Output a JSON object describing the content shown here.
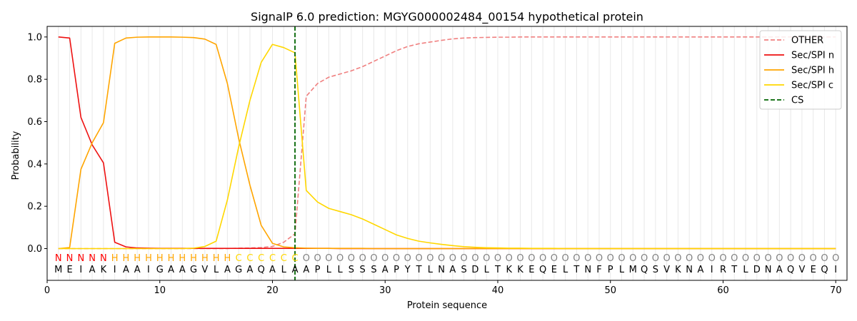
{
  "chart_data": {
    "type": "line",
    "title": "SignalP 6.0 prediction: MGYG000002484_00154 hypothetical protein",
    "xlabel": "Protein sequence",
    "ylabel": "Probability",
    "xlim": [
      0,
      71
    ],
    "ylim": [
      -0.15,
      1.05
    ],
    "xticks": [
      0,
      10,
      20,
      30,
      40,
      50,
      60,
      70
    ],
    "yticks": [
      0.0,
      0.2,
      0.4,
      0.6,
      0.8,
      1.0
    ],
    "ytick_labels": [
      "0.0",
      "0.2",
      "0.4",
      "0.6",
      "0.8",
      "1.0"
    ],
    "grid": "vertical lines at each residue",
    "legend_position": "top-right",
    "sequence": [
      "M",
      "E",
      "I",
      "A",
      "K",
      "I",
      "A",
      "A",
      "I",
      "G",
      "A",
      "A",
      "G",
      "V",
      "L",
      "A",
      "G",
      "A",
      "Q",
      "A",
      "L",
      "A",
      "A",
      "P",
      "L",
      "L",
      "S",
      "S",
      "S",
      "A",
      "P",
      "Y",
      "T",
      "L",
      "N",
      "A",
      "S",
      "D",
      "L",
      "T",
      "K",
      "K",
      "E",
      "Q",
      "E",
      "L",
      "T",
      "N",
      "F",
      "P",
      "L",
      "M",
      "Q",
      "S",
      "V",
      "K",
      "N",
      "A",
      "I",
      "R",
      "T",
      "L",
      "D",
      "N",
      "A",
      "Q",
      "V",
      "E",
      "Q",
      "I"
    ],
    "labels": [
      "N",
      "N",
      "N",
      "N",
      "N",
      "H",
      "H",
      "H",
      "H",
      "H",
      "H",
      "H",
      "H",
      "H",
      "H",
      "H",
      "C",
      "C",
      "C",
      "C",
      "C",
      "C",
      "O",
      "O",
      "O",
      "O",
      "O",
      "O",
      "O",
      "O",
      "O",
      "O",
      "O",
      "O",
      "O",
      "O",
      "O",
      "O",
      "O",
      "O",
      "O",
      "O",
      "O",
      "O",
      "O",
      "O",
      "O",
      "O",
      "O",
      "O",
      "O",
      "O",
      "O",
      "O",
      "O",
      "O",
      "O",
      "O",
      "O",
      "O",
      "O",
      "O",
      "O",
      "O",
      "O",
      "O",
      "O",
      "O",
      "O",
      "O"
    ],
    "label_colors": {
      "N": "#ff0000",
      "H": "#ffa500",
      "C": "#ffd700",
      "O": "#808080"
    },
    "cleavage_site": 22,
    "series": [
      {
        "name": "OTHER",
        "color": "#f08080",
        "dash": "dashed",
        "values": [
          0,
          0,
          0,
          0,
          0,
          0,
          0,
          0,
          0,
          0,
          0,
          0,
          0,
          0,
          0,
          0,
          0.002,
          0.003,
          0.005,
          0.01,
          0.03,
          0.07,
          0.72,
          0.78,
          0.81,
          0.825,
          0.84,
          0.86,
          0.885,
          0.91,
          0.935,
          0.955,
          0.968,
          0.976,
          0.984,
          0.991,
          0.995,
          0.997,
          0.998,
          0.999,
          0.999,
          1,
          1,
          1,
          1,
          1,
          1,
          1,
          1,
          1,
          1,
          1,
          1,
          1,
          1,
          1,
          1,
          1,
          1,
          1,
          1,
          1,
          1,
          1,
          1,
          1,
          1,
          1,
          1,
          1
        ]
      },
      {
        "name": "Sec/SPI n",
        "color": "#ee1111",
        "dash": "solid",
        "values": [
          1.0,
          0.995,
          0.62,
          0.49,
          0.405,
          0.03,
          0.008,
          0.003,
          0.002,
          0.001,
          0.001,
          0.001,
          0.001,
          0.001,
          0.001,
          0.001,
          0.001,
          0.001,
          0.001,
          0.001,
          0.001,
          0.001,
          0.001,
          0.001,
          0.001,
          0,
          0,
          0,
          0,
          0,
          0,
          0,
          0,
          0,
          0,
          0,
          0,
          0,
          0,
          0,
          0,
          0,
          0,
          0,
          0,
          0,
          0,
          0,
          0,
          0,
          0,
          0,
          0,
          0,
          0,
          0,
          0,
          0,
          0,
          0,
          0,
          0,
          0,
          0,
          0,
          0,
          0,
          0,
          0,
          0
        ]
      },
      {
        "name": "Sec/SPI h",
        "color": "#ffa500",
        "dash": "solid",
        "values": [
          0,
          0.005,
          0.375,
          0.5,
          0.595,
          0.97,
          0.995,
          0.999,
          1.0,
          1.0,
          1.0,
          0.999,
          0.997,
          0.99,
          0.965,
          0.78,
          0.52,
          0.3,
          0.11,
          0.025,
          0.008,
          0.004,
          0.002,
          0.001,
          0.001,
          0.001,
          0.001,
          0.001,
          0,
          0,
          0,
          0,
          0,
          0,
          0,
          0,
          0,
          0,
          0,
          0,
          0,
          0,
          0,
          0,
          0,
          0,
          0,
          0,
          0,
          0,
          0,
          0,
          0,
          0,
          0,
          0,
          0,
          0,
          0,
          0,
          0,
          0,
          0,
          0,
          0,
          0,
          0,
          0,
          0,
          0
        ]
      },
      {
        "name": "Sec/SPI c",
        "color": "#ffd700",
        "dash": "solid",
        "values": [
          0,
          0,
          0,
          0,
          0,
          0,
          0,
          0,
          0,
          0,
          0,
          0,
          0.002,
          0.01,
          0.035,
          0.23,
          0.48,
          0.7,
          0.88,
          0.965,
          0.95,
          0.925,
          0.275,
          0.22,
          0.19,
          0.175,
          0.16,
          0.14,
          0.115,
          0.09,
          0.065,
          0.048,
          0.035,
          0.027,
          0.02,
          0.014,
          0.009,
          0.006,
          0.004,
          0.003,
          0.002,
          0.002,
          0.001,
          0.001,
          0.001,
          0,
          0,
          0,
          0,
          0,
          0,
          0,
          0,
          0,
          0,
          0,
          0,
          0,
          0,
          0,
          0,
          0,
          0,
          0,
          0,
          0,
          0,
          0,
          0,
          0
        ]
      }
    ],
    "legend": [
      "OTHER",
      "Sec/SPI n",
      "Sec/SPI h",
      "Sec/SPI c",
      "CS"
    ],
    "cs_color": "#006400"
  }
}
